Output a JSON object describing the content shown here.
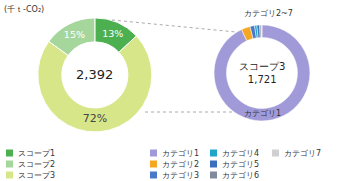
{
  "chart_data": [
    {
      "type": "pie",
      "subtitle": "(千ｔ-CO₂)",
      "center_text": {
        "value": 2392,
        "label": "2,392"
      },
      "categories": [
        "スコープ1",
        "スコープ2",
        "スコープ3"
      ],
      "values": [
        13,
        15,
        72
      ],
      "value_labels": [
        "13%",
        "15%",
        "72%"
      ],
      "data_labels": true,
      "colors": [
        "#4caf50",
        "#a5d69b",
        "#d8e68a"
      ],
      "legend": "bottom"
    },
    {
      "type": "pie",
      "title": "スコープ3",
      "center_text": {
        "value": 1721,
        "label": "1,721"
      },
      "categories": [
        "カテゴリ1",
        "カテゴリ2",
        "カテゴリ3",
        "カテゴリ4",
        "カテゴリ5",
        "カテゴリ6",
        "カテゴリ7"
      ],
      "values": [
        93,
        3,
        1.5,
        0.8,
        0.9,
        0.5,
        0.3
      ],
      "data_labels": false,
      "colors": [
        "#a09bd8",
        "#f5a623",
        "#4a78c8",
        "#1ea5cc",
        "#3d6fbf",
        "#7f8a9c",
        "#d0d0d0"
      ],
      "annotations": [
        "カテゴリ1",
        "カテゴリ2~7"
      ],
      "legend": "bottom"
    }
  ]
}
